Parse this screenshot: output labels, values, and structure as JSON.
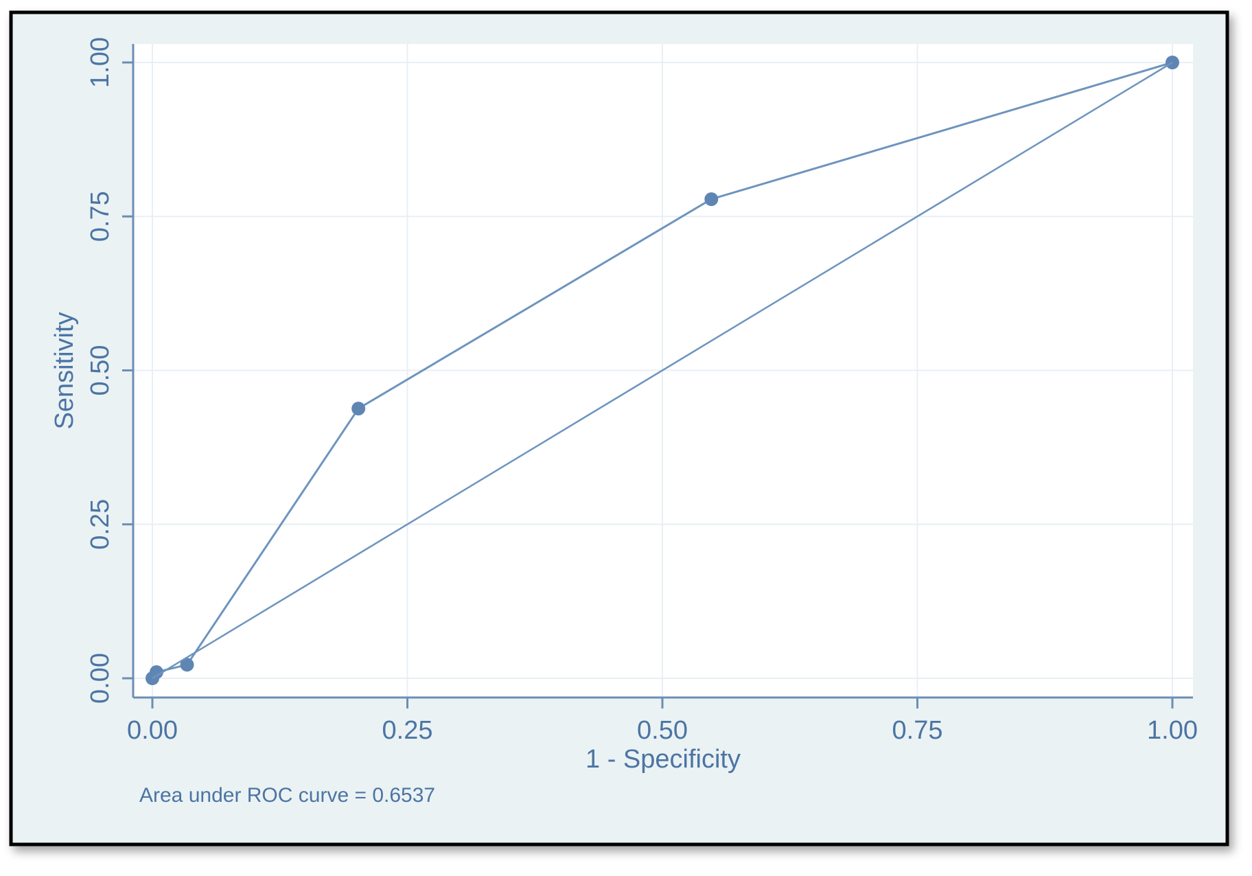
{
  "chart_data": {
    "type": "line",
    "xlabel": "1 - Specificity",
    "ylabel": "Sensitivity",
    "note": "Area under ROC curve = 0.6537",
    "xlim": [
      0,
      1
    ],
    "ylim": [
      0,
      1
    ],
    "x_ticks": [
      "0.00",
      "0.25",
      "0.50",
      "0.75",
      "1.00"
    ],
    "y_ticks": [
      "0.00",
      "0.25",
      "0.50",
      "0.75",
      "1.00"
    ],
    "grid": true,
    "series": [
      {
        "markers": true,
        "points": [
          {
            "x": 0.0,
            "y": 0.0
          },
          {
            "x": 0.004,
            "y": 0.01
          },
          {
            "x": 0.034,
            "y": 0.022
          },
          {
            "x": 0.202,
            "y": 0.438
          },
          {
            "x": 0.548,
            "y": 0.778
          },
          {
            "x": 1.0,
            "y": 1.0
          }
        ]
      },
      {
        "markers": false,
        "points": [
          {
            "x": 0.0,
            "y": 0.0
          },
          {
            "x": 1.0,
            "y": 1.0
          }
        ]
      }
    ],
    "colors": {
      "outer_background": "#eaf2f3",
      "plot_background": "#ffffff",
      "grid": "#e8eff4",
      "axis": "#6b8fb5",
      "line": "#6e94be",
      "marker": "#5f86b3",
      "text": "#4c74a4",
      "frame": "#000000"
    }
  }
}
